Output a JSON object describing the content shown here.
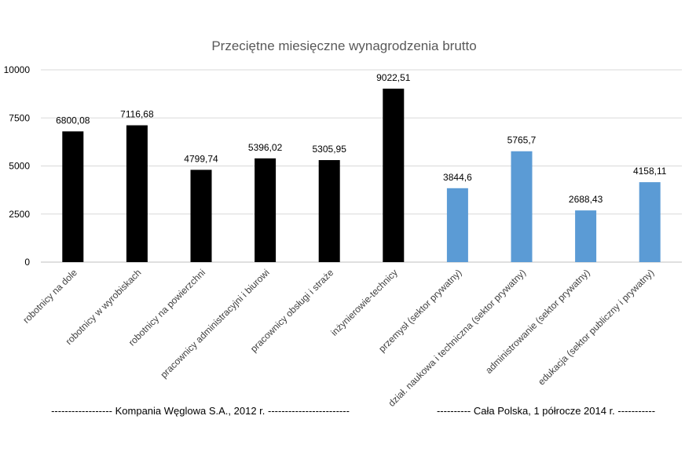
{
  "chart_data": {
    "type": "bar",
    "title": "Przeciętne miesięczne wynagrodzenia brutto",
    "categories": [
      "robotnicy na dole",
      "robotnicy w wyrobiskach",
      "robotnicy na powierzchni",
      "pracownicy administracyjni i biurowi",
      "pracownicy obsługi i straże",
      "inżynierowie-technicy",
      "przemysł (sektor prywatny)",
      "dział. naukowa i techniczna (sektor prywatny)",
      "administrowanie (sektor prywatny)",
      "edukacja (sektor publiczny i prywatny)"
    ],
    "values": [
      6800.08,
      7116.68,
      4799.74,
      5396.02,
      5305.95,
      9022.51,
      3844.6,
      5765.7,
      2688.43,
      4158.11
    ],
    "value_labels": [
      "6800,08",
      "7116,68",
      "4799,74",
      "5396,02",
      "5305,95",
      "9022,51",
      "3844,6",
      "5765,7",
      "2688,43",
      "4158,11"
    ],
    "bar_colors": [
      "#000000",
      "#000000",
      "#000000",
      "#000000",
      "#000000",
      "#000000",
      "#5b9bd5",
      "#5b9bd5",
      "#5b9bd5",
      "#5b9bd5"
    ],
    "ylim": [
      0,
      10000
    ],
    "yticks": [
      0,
      2500,
      5000,
      7500,
      10000
    ],
    "ytick_labels": [
      "0",
      "2500",
      "5000",
      "7500",
      "10000"
    ],
    "grid": true,
    "grid_color": "#d9d9d9",
    "xlabel": "",
    "ylabel": "",
    "group_labels": [
      "------------------ Kompania Węglowa S.A., 2012 r. ------------------------",
      "---------- Cała Polska, 1 półrocze 2014 r. -----------"
    ]
  }
}
